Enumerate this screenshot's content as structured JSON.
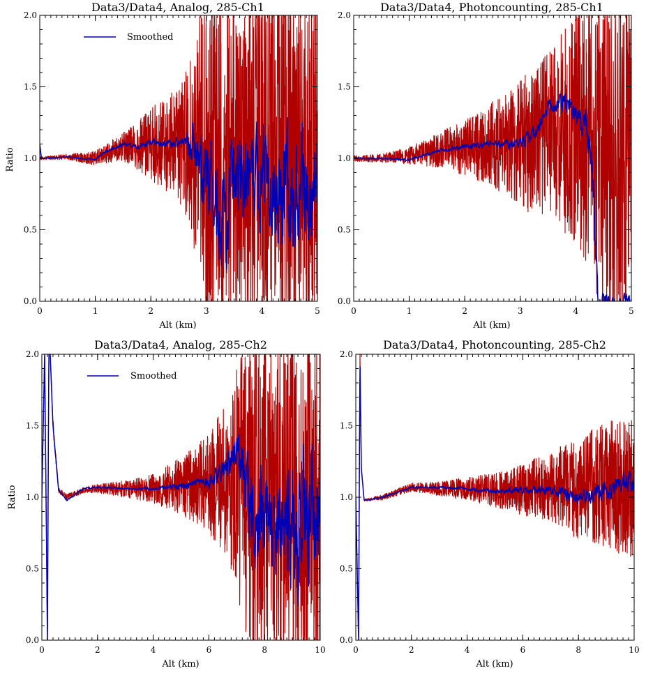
{
  "colors": {
    "raw": "#b00000",
    "smoothed": "#0000b4",
    "axis": "#000000",
    "background": "#ffffff"
  },
  "chart_data": [
    {
      "type": "line",
      "title": "Data3/Data4, Analog, 285-Ch1",
      "xlabel": "Alt (km)",
      "ylabel": "Ratio",
      "xlim": [
        0,
        5
      ],
      "ylim": [
        0,
        2
      ],
      "xticks": [
        "0",
        "1",
        "2",
        "3",
        "4",
        "5"
      ],
      "yticks": [
        "0.0",
        "0.5",
        "1.0",
        "1.5",
        "2.0"
      ],
      "grid": false,
      "legend": {
        "placement": "top-left",
        "entries": [
          "Smoothed"
        ]
      },
      "series": [
        {
          "role": "raw",
          "color": "#b00000",
          "x": [
            0,
            0.5,
            1.0,
            1.5,
            2.0,
            2.5,
            2.7,
            3.0,
            3.5,
            4.0,
            4.5,
            5.0
          ],
          "y": [
            1.0,
            1.01,
            1.0,
            1.08,
            1.1,
            1.1,
            1.1,
            1.0,
            0.9,
            1.0,
            1.0,
            1.0
          ],
          "spread": [
            0.01,
            0.02,
            0.05,
            0.1,
            0.25,
            0.4,
            0.6,
            1.2,
            1.2,
            1.2,
            1.2,
            1.2
          ]
        },
        {
          "name": "Smoothed",
          "role": "smoothed",
          "color": "#0000b4",
          "x": [
            0,
            0.03,
            0.1,
            0.5,
            1.0,
            1.2,
            1.5,
            1.8,
            2.0,
            2.3,
            2.6,
            2.8,
            3.0,
            3.3,
            3.6,
            4.0,
            4.5,
            5.0
          ],
          "y": [
            1.1,
            1.0,
            1.0,
            1.01,
            0.99,
            1.05,
            1.1,
            1.08,
            1.12,
            1.1,
            1.12,
            1.1,
            0.9,
            0.6,
            0.8,
            0.9,
            0.8,
            0.7
          ],
          "spread": [
            0.0,
            0.0,
            0.0,
            0.005,
            0.01,
            0.02,
            0.03,
            0.03,
            0.04,
            0.05,
            0.06,
            0.3,
            0.5,
            0.6,
            0.6,
            0.6,
            0.7,
            0.7
          ]
        }
      ]
    },
    {
      "type": "line",
      "title": "Data3/Data4, Photoncounting, 285-Ch1",
      "xlabel": "Alt (km)",
      "ylabel": "",
      "xlim": [
        0,
        5
      ],
      "ylim": [
        0,
        2
      ],
      "xticks": [
        "0",
        "1",
        "2",
        "3",
        "4",
        "5"
      ],
      "yticks": [
        "0.0",
        "0.5",
        "1.0",
        "1.5",
        "2.0"
      ],
      "grid": false,
      "legend": null,
      "series": [
        {
          "role": "raw",
          "color": "#b00000",
          "x": [
            0,
            0.5,
            1.0,
            1.5,
            2.0,
            2.5,
            3.0,
            3.5,
            4.0,
            4.3,
            4.5,
            5.0
          ],
          "y": [
            1.0,
            1.0,
            1.02,
            1.05,
            1.08,
            1.1,
            1.1,
            1.15,
            1.2,
            1.2,
            1.0,
            1.0
          ],
          "spread": [
            0.02,
            0.03,
            0.06,
            0.12,
            0.2,
            0.3,
            0.45,
            0.6,
            0.8,
            1.0,
            1.2,
            1.2
          ]
        },
        {
          "name": "Smoothed",
          "role": "smoothed",
          "color": "#0000b4",
          "x": [
            0,
            0.5,
            1.0,
            1.5,
            2.0,
            2.5,
            3.0,
            3.3,
            3.5,
            3.8,
            4.0,
            4.2,
            4.3,
            4.35,
            4.4
          ],
          "y": [
            1.0,
            1.0,
            0.99,
            1.05,
            1.08,
            1.1,
            1.1,
            1.2,
            1.35,
            1.4,
            1.3,
            1.2,
            0.9,
            0.5,
            0.0
          ],
          "spread": [
            0.005,
            0.01,
            0.015,
            0.02,
            0.03,
            0.04,
            0.06,
            0.08,
            0.1,
            0.12,
            0.15,
            0.2,
            0.3,
            0.3,
            0.1
          ]
        }
      ]
    },
    {
      "type": "line",
      "title": "Data3/Data4, Analog, 285-Ch2",
      "xlabel": "Alt (km)",
      "ylabel": "Ratio",
      "xlim": [
        0,
        10
      ],
      "ylim": [
        0,
        2
      ],
      "xticks": [
        "0",
        "2",
        "4",
        "6",
        "8",
        "10"
      ],
      "yticks": [
        "0.0",
        "0.5",
        "1.0",
        "1.5",
        "2.0"
      ],
      "grid": false,
      "legend": {
        "placement": "top-left",
        "entries": [
          "Smoothed"
        ]
      },
      "series": [
        {
          "role": "raw",
          "color": "#b00000",
          "x": [
            0,
            0.1,
            0.2,
            0.25,
            0.3,
            0.4,
            0.6,
            0.9,
            1.5,
            2.0,
            3.0,
            4.0,
            5.0,
            6.0,
            6.5,
            7.0,
            7.5,
            8.0,
            9.0,
            10.0
          ],
          "y": [
            1.0,
            2.0,
            0.0,
            2.0,
            2.0,
            1.5,
            1.05,
            1.0,
            1.05,
            1.06,
            1.06,
            1.06,
            1.08,
            1.1,
            1.12,
            1.1,
            1.0,
            1.0,
            1.0,
            1.0
          ],
          "spread": [
            0.02,
            0.0,
            0.0,
            0.0,
            0.0,
            0.05,
            0.02,
            0.02,
            0.02,
            0.03,
            0.06,
            0.1,
            0.2,
            0.35,
            0.5,
            0.8,
            1.2,
            1.2,
            1.2,
            1.2
          ]
        },
        {
          "name": "Smoothed",
          "role": "smoothed",
          "color": "#0000b4",
          "x": [
            0,
            0.1,
            0.2,
            0.25,
            0.3,
            0.4,
            0.6,
            0.9,
            1.2,
            1.5,
            2.0,
            3.0,
            4.0,
            5.0,
            6.0,
            6.5,
            7.0,
            7.5,
            8.0,
            9.0,
            10.0
          ],
          "y": [
            1.0,
            2.0,
            0.0,
            2.0,
            2.0,
            1.5,
            1.05,
            0.98,
            1.02,
            1.06,
            1.07,
            1.06,
            1.06,
            1.08,
            1.1,
            1.2,
            1.3,
            1.0,
            0.8,
            0.8,
            0.9
          ],
          "spread": [
            0.0,
            0.0,
            0.0,
            0.0,
            0.0,
            0.0,
            0.0,
            0.01,
            0.01,
            0.01,
            0.01,
            0.01,
            0.02,
            0.04,
            0.08,
            0.15,
            0.3,
            0.6,
            0.7,
            0.8,
            0.8
          ]
        }
      ]
    },
    {
      "type": "line",
      "title": "Data3/Data4, Photoncounting, 285-Ch2",
      "xlabel": "Alt (km)",
      "ylabel": "",
      "xlim": [
        0,
        10
      ],
      "ylim": [
        0,
        2
      ],
      "xticks": [
        "0",
        "2",
        "4",
        "6",
        "8",
        "10"
      ],
      "yticks": [
        "0.0",
        "0.5",
        "1.0",
        "1.5",
        "2.0"
      ],
      "grid": false,
      "legend": null,
      "series": [
        {
          "role": "raw",
          "color": "#b00000",
          "x": [
            0,
            0.1,
            0.15,
            0.2,
            0.3,
            0.4,
            1.0,
            2.0,
            3.0,
            4.0,
            5.0,
            6.0,
            7.0,
            8.0,
            9.0,
            10.0
          ],
          "y": [
            1.0,
            0.0,
            2.0,
            1.2,
            0.98,
            0.98,
            1.0,
            1.07,
            1.06,
            1.06,
            1.05,
            1.05,
            1.08,
            1.05,
            1.1,
            1.05
          ],
          "spread": [
            0.02,
            0.0,
            0.0,
            0.0,
            0.01,
            0.01,
            0.02,
            0.03,
            0.05,
            0.08,
            0.12,
            0.18,
            0.25,
            0.35,
            0.45,
            0.5
          ]
        },
        {
          "name": "Smoothed",
          "role": "smoothed",
          "color": "#0000b4",
          "x": [
            0,
            0.1,
            0.15,
            0.2,
            0.3,
            0.4,
            1.0,
            2.0,
            3.0,
            4.0,
            5.0,
            6.0,
            7.0,
            8.0,
            9.0,
            10.0
          ],
          "y": [
            1.0,
            0.0,
            2.0,
            1.2,
            0.98,
            0.98,
            1.0,
            1.07,
            1.07,
            1.06,
            1.04,
            1.05,
            1.05,
            1.0,
            1.05,
            1.1
          ],
          "spread": [
            0.0,
            0.0,
            0.0,
            0.0,
            0.0,
            0.005,
            0.01,
            0.01,
            0.015,
            0.02,
            0.03,
            0.04,
            0.06,
            0.08,
            0.12,
            0.15
          ]
        }
      ]
    }
  ]
}
